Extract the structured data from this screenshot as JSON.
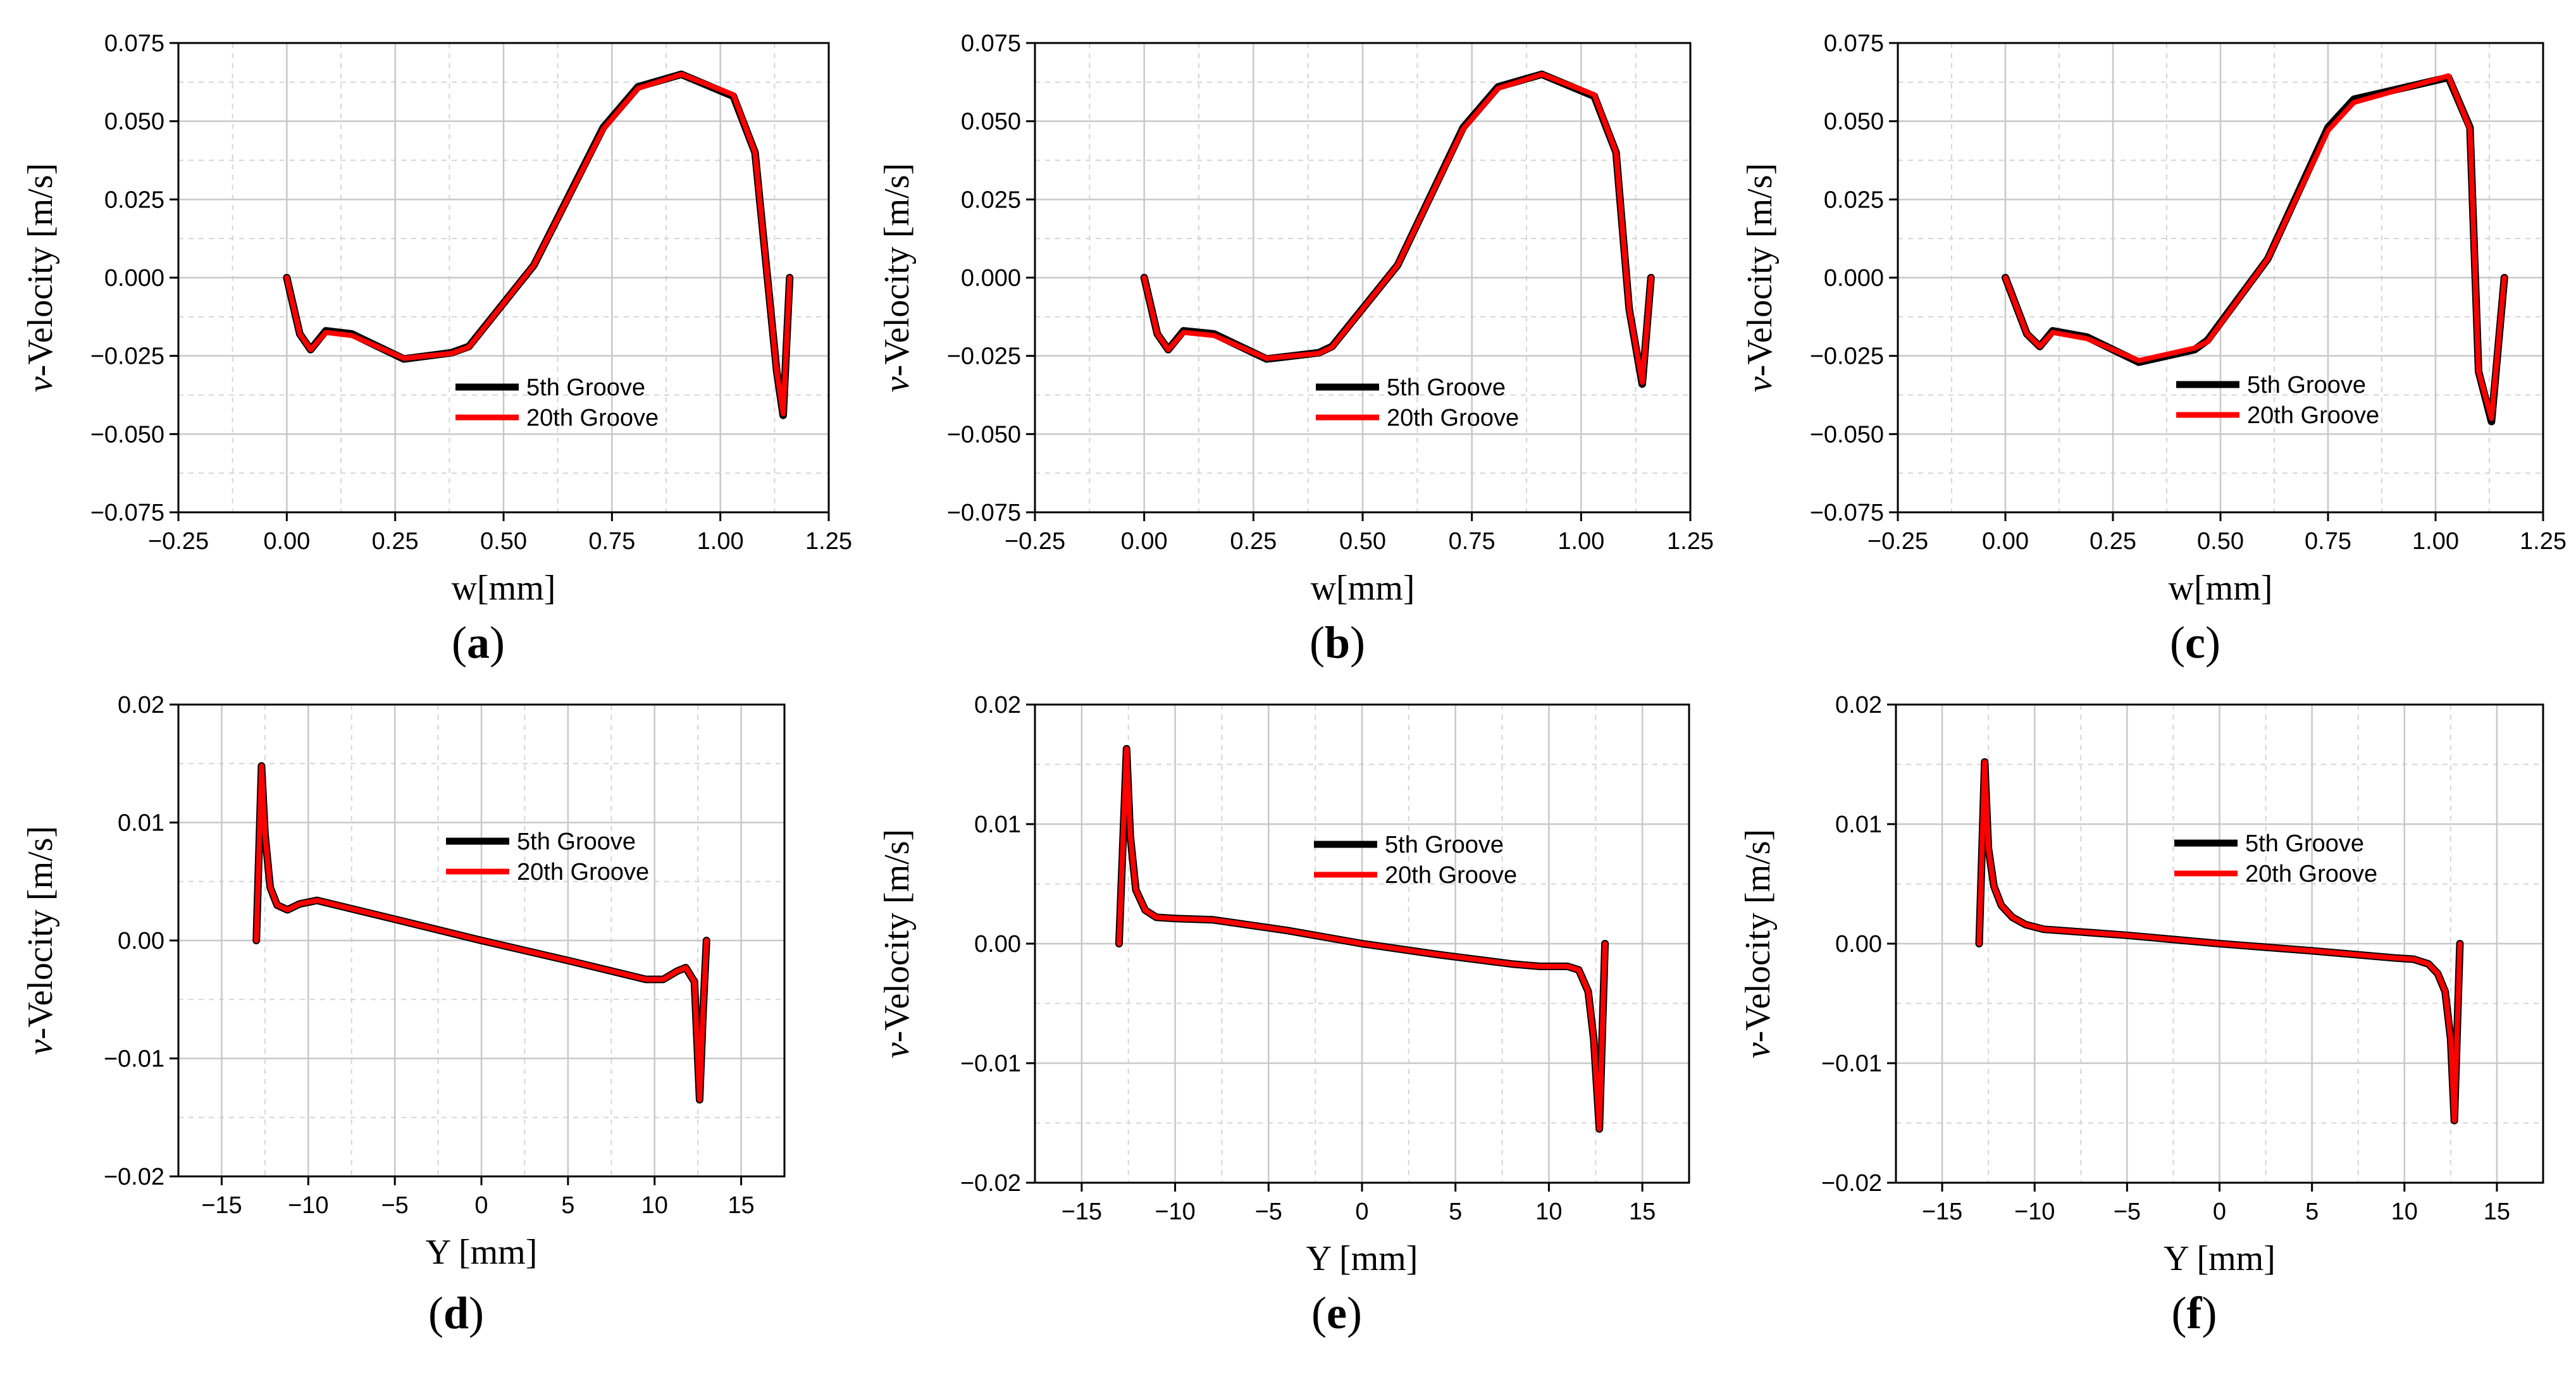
{
  "figure": {
    "panels": [
      "a",
      "b",
      "c",
      "d",
      "e",
      "f"
    ]
  },
  "chart_data": [
    {
      "id": "a",
      "panel_label": "a",
      "type": "line",
      "xlabel": "w[mm]",
      "ylabel_italic": "v",
      "ylabel_rest": "-Velocity [m/s]",
      "xlim": [
        -0.25,
        1.25
      ],
      "ylim": [
        -0.075,
        0.075
      ],
      "xticks": [
        -0.25,
        0,
        0.25,
        0.5,
        0.75,
        1.0,
        1.25
      ],
      "xtick_labels": [
        "−0.25",
        "0.00",
        "0.25",
        "0.50",
        "0.75",
        "1.00",
        "1.25"
      ],
      "yticks": [
        -0.075,
        -0.05,
        -0.025,
        0,
        0.025,
        0.05,
        0.075
      ],
      "ytick_labels": [
        "−0.075",
        "−0.050",
        "−0.025",
        "0.000",
        "0.025",
        "0.050",
        "0.075"
      ],
      "legend_position": "lower-center",
      "series": [
        {
          "name": "5th Groove",
          "color": "#000000",
          "x": [
            0,
            0.03,
            0.055,
            0.09,
            0.15,
            0.27,
            0.38,
            0.42,
            0.57,
            0.73,
            0.81,
            0.91,
            1.03,
            1.08,
            1.13,
            1.145,
            1.16
          ],
          "y": [
            0,
            -0.018,
            -0.023,
            -0.017,
            -0.018,
            -0.026,
            -0.024,
            -0.022,
            0.004,
            0.048,
            0.061,
            0.065,
            0.058,
            0.04,
            -0.03,
            -0.044,
            0
          ]
        },
        {
          "name": "20th Groove",
          "color": "#ff0000",
          "x": [
            0,
            0.03,
            0.055,
            0.09,
            0.15,
            0.27,
            0.38,
            0.42,
            0.57,
            0.73,
            0.81,
            0.91,
            1.03,
            1.08,
            1.13,
            1.145,
            1.16
          ],
          "y": [
            0,
            -0.018,
            -0.023,
            -0.0175,
            -0.0185,
            -0.0258,
            -0.0242,
            -0.0222,
            0.004,
            0.0475,
            0.0605,
            0.065,
            0.0585,
            0.04,
            -0.03,
            -0.0435,
            0
          ]
        }
      ]
    },
    {
      "id": "b",
      "panel_label": "b",
      "type": "line",
      "xlabel": "w[mm]",
      "ylabel_italic": "v",
      "ylabel_rest": "-Velocity [m/s]",
      "xlim": [
        -0.25,
        1.25
      ],
      "ylim": [
        -0.075,
        0.075
      ],
      "xticks": [
        -0.25,
        0,
        0.25,
        0.5,
        0.75,
        1.0,
        1.25
      ],
      "xtick_labels": [
        "−0.25",
        "0.00",
        "0.25",
        "0.50",
        "0.75",
        "1.00",
        "1.25"
      ],
      "yticks": [
        -0.075,
        -0.05,
        -0.025,
        0,
        0.025,
        0.05,
        0.075
      ],
      "ytick_labels": [
        "−0.075",
        "−0.050",
        "−0.025",
        "0.000",
        "0.025",
        "0.050",
        "0.075"
      ],
      "legend_position": "lower-center",
      "series": [
        {
          "name": "5th Groove",
          "color": "#000000",
          "x": [
            0,
            0.03,
            0.055,
            0.09,
            0.16,
            0.28,
            0.4,
            0.43,
            0.58,
            0.73,
            0.81,
            0.91,
            1.03,
            1.08,
            1.11,
            1.14,
            1.16
          ],
          "y": [
            0,
            -0.018,
            -0.023,
            -0.017,
            -0.018,
            -0.026,
            -0.024,
            -0.022,
            0.004,
            0.048,
            0.061,
            0.065,
            0.058,
            0.04,
            -0.01,
            -0.034,
            0
          ]
        },
        {
          "name": "20th Groove",
          "color": "#ff0000",
          "x": [
            0,
            0.03,
            0.055,
            0.09,
            0.16,
            0.28,
            0.4,
            0.43,
            0.58,
            0.73,
            0.81,
            0.91,
            1.03,
            1.08,
            1.11,
            1.14,
            1.16
          ],
          "y": [
            0,
            -0.018,
            -0.023,
            -0.0175,
            -0.0185,
            -0.0258,
            -0.0242,
            -0.0222,
            0.004,
            0.0475,
            0.0605,
            0.065,
            0.0585,
            0.04,
            -0.01,
            -0.0335,
            0
          ]
        }
      ]
    },
    {
      "id": "c",
      "panel_label": "c",
      "type": "line",
      "xlabel": "w[mm]",
      "ylabel_italic": "v",
      "ylabel_rest": "-Velocity [m/s]",
      "xlim": [
        -0.25,
        1.25
      ],
      "ylim": [
        -0.075,
        0.075
      ],
      "xticks": [
        -0.25,
        0,
        0.25,
        0.5,
        0.75,
        1.0,
        1.25
      ],
      "xtick_labels": [
        "−0.25",
        "0.00",
        "0.25",
        "0.50",
        "0.75",
        "1.00",
        "1.25"
      ],
      "yticks": [
        -0.075,
        -0.05,
        -0.025,
        0,
        0.025,
        0.05,
        0.075
      ],
      "ytick_labels": [
        "−0.075",
        "−0.050",
        "−0.025",
        "0.000",
        "0.025",
        "0.050",
        "0.075"
      ],
      "legend_position": "lower-center",
      "series": [
        {
          "name": "5th Groove",
          "color": "#000000",
          "x": [
            0,
            0.05,
            0.08,
            0.11,
            0.19,
            0.31,
            0.44,
            0.47,
            0.61,
            0.75,
            0.81,
            1.03,
            1.08,
            1.1,
            1.13,
            1.16
          ],
          "y": [
            0,
            -0.018,
            -0.022,
            -0.017,
            -0.019,
            -0.027,
            -0.023,
            -0.02,
            0.006,
            0.048,
            0.057,
            0.064,
            0.048,
            -0.03,
            -0.046,
            0
          ]
        },
        {
          "name": "20th Groove",
          "color": "#ff0000",
          "x": [
            0,
            0.05,
            0.08,
            0.11,
            0.19,
            0.31,
            0.44,
            0.47,
            0.61,
            0.75,
            0.81,
            1.03,
            1.08,
            1.1,
            1.13,
            1.16
          ],
          "y": [
            0,
            -0.018,
            -0.022,
            -0.0175,
            -0.0195,
            -0.0265,
            -0.0225,
            -0.0205,
            0.006,
            0.047,
            0.056,
            0.0645,
            0.0475,
            -0.03,
            -0.045,
            0
          ]
        }
      ]
    },
    {
      "id": "d",
      "panel_label": "d",
      "type": "line",
      "xlabel": "Y [mm]",
      "ylabel_italic": "v",
      "ylabel_rest": "-Velocity [m/s]",
      "xlim": [
        -17.5,
        17.5
      ],
      "ylim": [
        -0.02,
        0.02
      ],
      "xticks": [
        -15,
        -10,
        -5,
        0,
        5,
        10,
        15
      ],
      "xtick_labels": [
        "−15",
        "−10",
        "−5",
        "0",
        "5",
        "10",
        "15"
      ],
      "yticks": [
        -0.02,
        -0.01,
        0,
        0.01,
        0.02
      ],
      "ytick_labels": [
        "−0.02",
        "−0.01",
        "0.00",
        "0.01",
        "0.02"
      ],
      "legend_position": "center",
      "series": [
        {
          "name": "5th Groove",
          "color": "#000000",
          "x": [
            -13,
            -12.7,
            -12.5,
            -12.2,
            -11.8,
            -11.2,
            -10.5,
            -9.5,
            -5,
            0,
            5,
            9.5,
            10.5,
            11.3,
            11.8,
            12.3,
            12.6,
            12.8,
            13
          ],
          "y": [
            0,
            0.0148,
            0.009,
            0.0045,
            0.003,
            0.0026,
            0.0031,
            0.0034,
            0.0018,
            0,
            -0.0017,
            -0.0033,
            -0.0033,
            -0.0026,
            -0.0023,
            -0.0035,
            -0.0135,
            -0.006,
            0
          ]
        },
        {
          "name": "20th Groove",
          "color": "#ff0000",
          "x": [
            -13,
            -12.7,
            -12.5,
            -12.2,
            -11.8,
            -11.2,
            -10.5,
            -9.5,
            -5,
            0,
            5,
            9.5,
            10.5,
            11.3,
            11.8,
            12.3,
            12.6,
            12.8,
            13
          ],
          "y": [
            0,
            0.0148,
            0.009,
            0.0045,
            0.003,
            0.0026,
            0.0031,
            0.0034,
            0.0018,
            0,
            -0.0017,
            -0.0033,
            -0.0033,
            -0.0026,
            -0.0023,
            -0.0035,
            -0.0135,
            -0.006,
            0
          ]
        }
      ]
    },
    {
      "id": "e",
      "panel_label": "e",
      "type": "line",
      "xlabel": "Y [mm]",
      "ylabel_italic": "v",
      "ylabel_rest": "-Velocity [m/s]",
      "xlim": [
        -17.5,
        17.5
      ],
      "ylim": [
        -0.02,
        0.02
      ],
      "xticks": [
        -15,
        -10,
        -5,
        0,
        5,
        10,
        15
      ],
      "xtick_labels": [
        "−15",
        "−10",
        "−5",
        "0",
        "5",
        "10",
        "15"
      ],
      "yticks": [
        -0.02,
        -0.01,
        0,
        0.01,
        0.02
      ],
      "ytick_labels": [
        "−0.02",
        "−0.01",
        "0.00",
        "0.01",
        "0.02"
      ],
      "legend_position": "center",
      "series": [
        {
          "name": "5th Groove",
          "color": "#000000",
          "x": [
            -13,
            -12.6,
            -12.4,
            -12.1,
            -11.6,
            -11,
            -10,
            -8,
            -4,
            0,
            4,
            8,
            9.5,
            11,
            11.6,
            12.1,
            12.4,
            12.7,
            13
          ],
          "y": [
            0,
            0.0163,
            0.009,
            0.0045,
            0.0028,
            0.0022,
            0.0021,
            0.002,
            0.0011,
            0,
            -0.0009,
            -0.0017,
            -0.0019,
            -0.0019,
            -0.0022,
            -0.004,
            -0.008,
            -0.0155,
            0
          ]
        },
        {
          "name": "20th Groove",
          "color": "#ff0000",
          "x": [
            -13,
            -12.6,
            -12.4,
            -12.1,
            -11.6,
            -11,
            -10,
            -8,
            -4,
            0,
            4,
            8,
            9.5,
            11,
            11.6,
            12.1,
            12.4,
            12.7,
            13
          ],
          "y": [
            0,
            0.0163,
            0.009,
            0.0045,
            0.0028,
            0.0022,
            0.0021,
            0.002,
            0.0011,
            0,
            -0.0009,
            -0.0017,
            -0.0019,
            -0.0019,
            -0.0022,
            -0.004,
            -0.008,
            -0.0155,
            0
          ]
        }
      ]
    },
    {
      "id": "f",
      "panel_label": "f",
      "type": "line",
      "xlabel": "Y [mm]",
      "ylabel_italic": "v",
      "ylabel_rest": "-Velocity [m/s]",
      "xlim": [
        -17.5,
        17.5
      ],
      "ylim": [
        -0.02,
        0.02
      ],
      "xticks": [
        -15,
        -10,
        -5,
        0,
        5,
        10,
        15
      ],
      "xtick_labels": [
        "−15",
        "−10",
        "−5",
        "0",
        "5",
        "10",
        "15"
      ],
      "yticks": [
        -0.02,
        -0.01,
        0,
        0.01,
        0.02
      ],
      "ytick_labels": [
        "−0.02",
        "−0.01",
        "0.00",
        "0.01",
        "0.02"
      ],
      "legend_position": "center",
      "series": [
        {
          "name": "5th Groove",
          "color": "#000000",
          "x": [
            -13,
            -12.7,
            -12.5,
            -12.2,
            -11.8,
            -11.2,
            -10.5,
            -9.5,
            -5,
            0,
            5,
            9.5,
            10.5,
            11.3,
            11.8,
            12.2,
            12.5,
            12.7,
            13
          ],
          "y": [
            0,
            0.0152,
            0.008,
            0.0048,
            0.0032,
            0.0022,
            0.0016,
            0.0012,
            0.0007,
            0,
            -0.0006,
            -0.0012,
            -0.0013,
            -0.0017,
            -0.0025,
            -0.004,
            -0.008,
            -0.0148,
            0
          ]
        },
        {
          "name": "20th Groove",
          "color": "#ff0000",
          "x": [
            -13,
            -12.7,
            -12.5,
            -12.2,
            -11.8,
            -11.2,
            -10.5,
            -9.5,
            -5,
            0,
            5,
            9.5,
            10.5,
            11.3,
            11.8,
            12.2,
            12.5,
            12.7,
            13
          ],
          "y": [
            0,
            0.0152,
            0.008,
            0.0048,
            0.0032,
            0.0022,
            0.0016,
            0.0012,
            0.0007,
            0,
            -0.0006,
            -0.0012,
            -0.0013,
            -0.0017,
            -0.0025,
            -0.004,
            -0.008,
            -0.0148,
            0
          ]
        }
      ]
    }
  ]
}
